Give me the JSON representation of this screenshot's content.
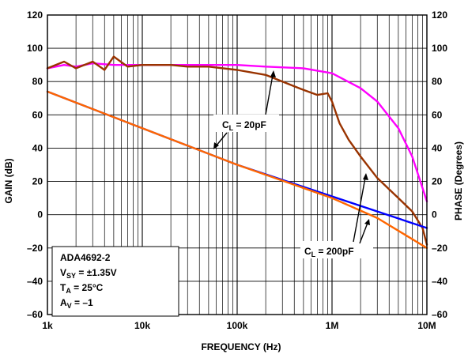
{
  "chart_data": {
    "type": "line",
    "title": "",
    "xlabel": "FREQUENCY (Hz)",
    "ylabel_left": "GAIN (dB)",
    "ylabel_right": "PHASE (Degrees)",
    "x_scale": "log",
    "xlim": [
      1000,
      10000000
    ],
    "ylim": [
      -60,
      120
    ],
    "grid": true,
    "x_tick_labels": [
      "1k",
      "10k",
      "100k",
      "1M",
      "10M"
    ],
    "x_tick_values": [
      1000,
      10000,
      100000,
      1000000,
      10000000
    ],
    "y_ticks": [
      -60,
      -40,
      -20,
      0,
      20,
      40,
      60,
      80,
      100,
      120
    ],
    "y_tick_labels": [
      "–60",
      "–40",
      "–20",
      "0",
      "20",
      "40",
      "60",
      "80",
      "100",
      "120"
    ],
    "series": [
      {
        "color": "#ff00ff",
        "axis": "phase",
        "points": [
          [
            1000,
            88
          ],
          [
            1500,
            90
          ],
          [
            2000,
            89
          ],
          [
            3000,
            91
          ],
          [
            5000,
            90
          ],
          [
            10000,
            90
          ],
          [
            20000,
            90
          ],
          [
            50000,
            90
          ],
          [
            100000,
            90
          ],
          [
            200000,
            89
          ],
          [
            500000,
            88
          ],
          [
            1000000,
            85
          ],
          [
            2000000,
            76
          ],
          [
            3000000,
            68
          ],
          [
            5000000,
            52
          ],
          [
            7000000,
            35
          ],
          [
            10000000,
            8
          ]
        ]
      },
      {
        "color": "#993300",
        "axis": "phase",
        "points": [
          [
            1000,
            88
          ],
          [
            1500,
            92
          ],
          [
            2000,
            88
          ],
          [
            3000,
            92
          ],
          [
            4000,
            87
          ],
          [
            5000,
            95
          ],
          [
            7000,
            89
          ],
          [
            10000,
            90
          ],
          [
            20000,
            90
          ],
          [
            30000,
            89
          ],
          [
            50000,
            89
          ],
          [
            100000,
            87
          ],
          [
            200000,
            84
          ],
          [
            300000,
            80
          ],
          [
            500000,
            75
          ],
          [
            700000,
            72
          ],
          [
            900000,
            73
          ],
          [
            1000000,
            68
          ],
          [
            1200000,
            55
          ],
          [
            1500000,
            45
          ],
          [
            2000000,
            35
          ],
          [
            3000000,
            22
          ],
          [
            5000000,
            10
          ],
          [
            7000000,
            2
          ],
          [
            9000000,
            -8
          ],
          [
            10000000,
            -18
          ]
        ]
      },
      {
        "color": "#0000ff",
        "axis": "gain",
        "points": [
          [
            1000,
            74
          ],
          [
            10000,
            52
          ],
          [
            100000,
            30
          ],
          [
            1000000,
            11
          ],
          [
            10000000,
            -8
          ]
        ]
      },
      {
        "color": "#ff6600",
        "axis": "gain",
        "points": [
          [
            1000,
            74
          ],
          [
            10000,
            52
          ],
          [
            100000,
            30
          ],
          [
            1000000,
            10
          ],
          [
            3000000,
            -2
          ],
          [
            10000000,
            -20
          ]
        ]
      }
    ],
    "annotations": {
      "cl_20": {
        "c": "C",
        "sub": "L",
        "rest": " = 20pF"
      },
      "cl_200": {
        "c": "C",
        "sub": "L",
        "rest": " = 200pF"
      }
    },
    "legend_box": {
      "device": "ADA4692-2",
      "vsy": {
        "v": "V",
        "sub": "SY",
        "rest": " = ±1.35V"
      },
      "ta": {
        "v": "T",
        "sub": "A",
        "rest": " = 25°C"
      },
      "av": {
        "v": "A",
        "sub": "V",
        "rest": " = –1"
      }
    }
  }
}
